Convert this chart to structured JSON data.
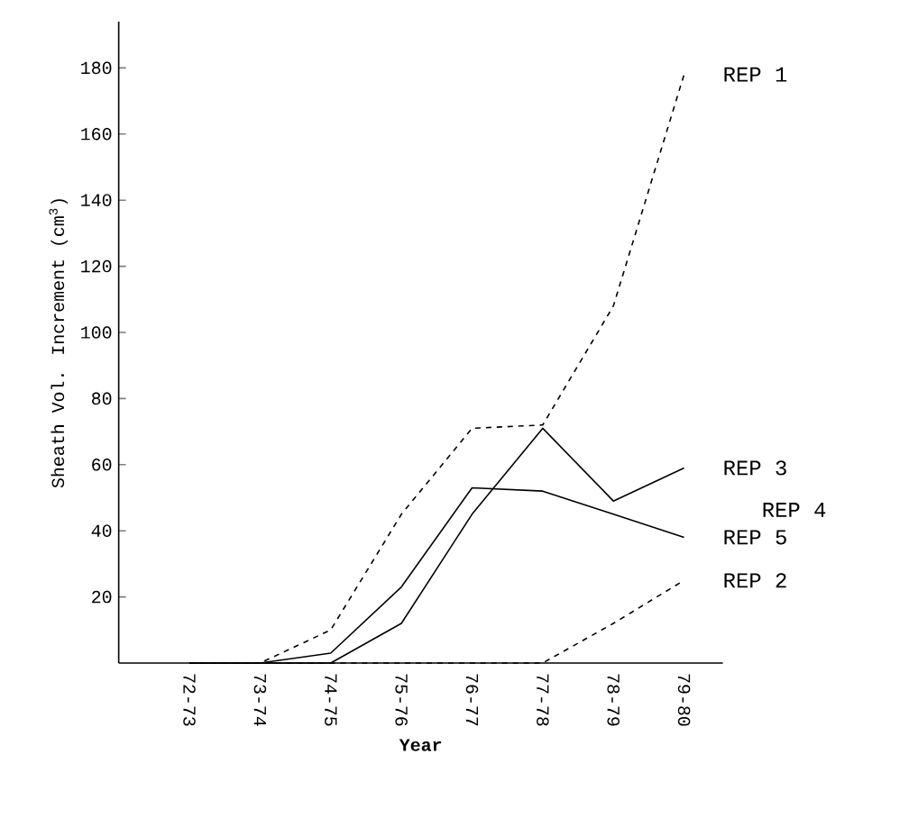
{
  "chart_data": {
    "type": "line",
    "xlabel": "Year",
    "ylabel": "Sheath Vol. Increment (cm$^{3}$)",
    "categories": [
      "72-73",
      "73-74",
      "74-75",
      "75-76",
      "76-77",
      "77-78",
      "78-79",
      "79-80"
    ],
    "series": [
      {
        "name": "REP 1",
        "color": "#000000",
        "line_style": "dashed",
        "values": [
          0,
          0,
          10,
          45,
          71,
          72,
          108,
          178
        ]
      },
      {
        "name": "REP 3",
        "color": "#000000",
        "line_style": "solid",
        "values": [
          0,
          0,
          0,
          12,
          45,
          71,
          49,
          59
        ]
      },
      {
        "name": "REP 5",
        "color": "#000000",
        "line_style": "solid",
        "values": [
          0,
          0,
          3,
          23,
          53,
          52,
          45,
          38
        ]
      },
      {
        "name": "REP 2",
        "color": "#000000",
        "line_style": "dashed",
        "values": [
          0,
          0,
          0,
          0,
          0,
          0,
          12,
          25
        ]
      }
    ],
    "annotations": [
      "REP 4"
    ],
    "ylim": [
      0,
      194
    ],
    "yticks": [
      20,
      40,
      60,
      80,
      100,
      120,
      140,
      160,
      180
    ],
    "grid": false,
    "legend": false,
    "marker": "none"
  }
}
